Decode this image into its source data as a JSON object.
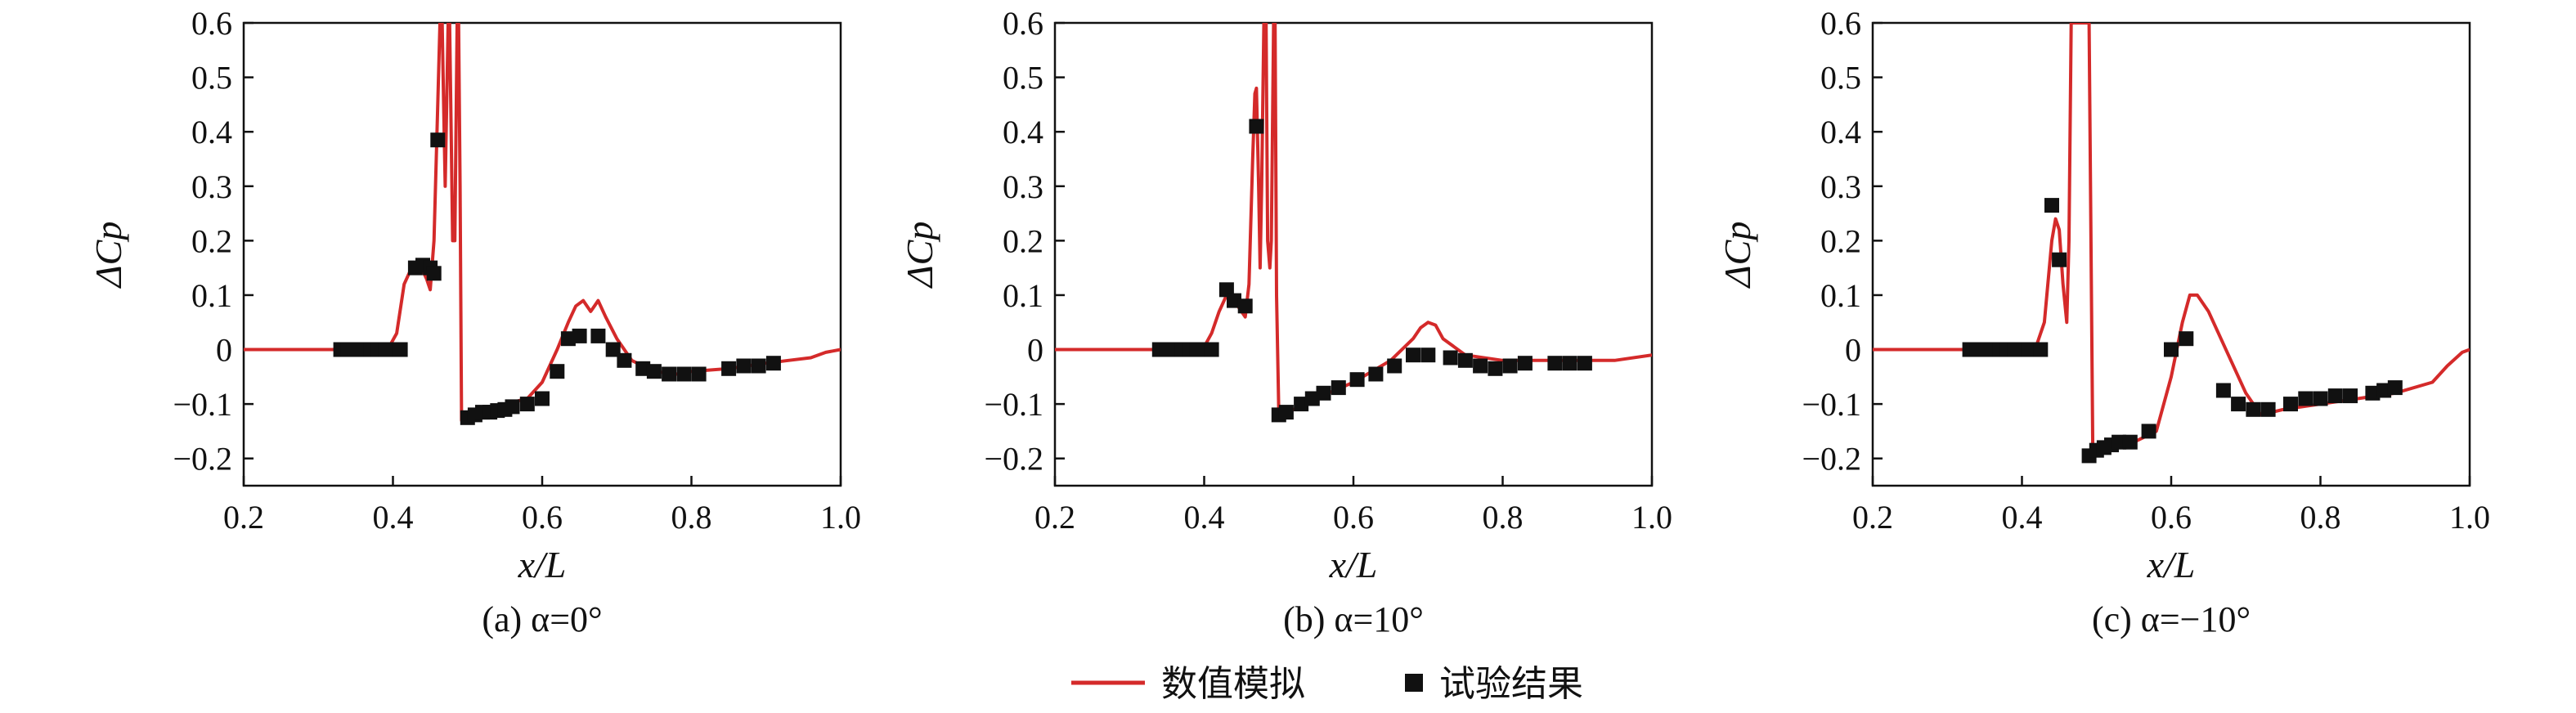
{
  "chart_data": [
    {
      "type": "line",
      "caption": "(a) α=0°",
      "xlabel": "x/L",
      "ylabel": "ΔCp",
      "xlim": [
        0.2,
        1.0
      ],
      "ylim": [
        -0.25,
        0.6
      ],
      "xticks": [
        0.2,
        0.4,
        0.6,
        0.8,
        1.0
      ],
      "xtick_labels": [
        "0.2",
        "0.4",
        "0.6",
        "0.8",
        "1.0"
      ],
      "yticks": [
        -0.2,
        -0.1,
        0,
        0.1,
        0.2,
        0.3,
        0.4,
        0.5,
        0.6
      ],
      "ytick_labels": [
        "−0.2",
        "−0.1",
        "0",
        "0.1",
        "0.2",
        "0.3",
        "0.4",
        "0.5",
        "0.6"
      ],
      "series": [
        {
          "name": "数值模拟",
          "kind": "line",
          "color": "#d42a2a",
          "x": [
            0.2,
            0.3,
            0.38,
            0.395,
            0.405,
            0.415,
            0.425,
            0.435,
            0.445,
            0.45,
            0.455,
            0.46,
            0.463,
            0.466,
            0.468,
            0.47,
            0.472,
            0.474,
            0.476,
            0.478,
            0.48,
            0.483,
            0.486,
            0.488,
            0.49,
            0.492,
            0.5,
            0.52,
            0.55,
            0.58,
            0.6,
            0.62,
            0.635,
            0.645,
            0.655,
            0.665,
            0.67,
            0.675,
            0.685,
            0.7,
            0.72,
            0.75,
            0.78,
            0.8,
            0.85,
            0.9,
            0.93,
            0.96,
            0.98,
            1.0
          ],
          "y": [
            0,
            0,
            0,
            0.005,
            0.03,
            0.12,
            0.15,
            0.16,
            0.13,
            0.11,
            0.2,
            0.45,
            0.6,
            0.6,
            0.45,
            0.3,
            0.45,
            0.6,
            0.6,
            0.4,
            0.2,
            0.2,
            0.6,
            0.6,
            0.3,
            -0.13,
            -0.12,
            -0.11,
            -0.1,
            -0.09,
            -0.06,
            0,
            0.05,
            0.08,
            0.09,
            0.07,
            0.08,
            0.09,
            0.06,
            0.02,
            -0.02,
            -0.04,
            -0.045,
            -0.04,
            -0.035,
            -0.025,
            -0.02,
            -0.015,
            -0.005,
            0
          ]
        },
        {
          "name": "试验结果",
          "kind": "scatter",
          "color": "#111111",
          "x": [
            0.33,
            0.34,
            0.35,
            0.36,
            0.37,
            0.38,
            0.39,
            0.4,
            0.41,
            0.43,
            0.44,
            0.45,
            0.455,
            0.46,
            0.5,
            0.51,
            0.52,
            0.53,
            0.54,
            0.55,
            0.56,
            0.58,
            0.6,
            0.62,
            0.635,
            0.65,
            0.675,
            0.695,
            0.71,
            0.735,
            0.75,
            0.77,
            0.79,
            0.81,
            0.85,
            0.87,
            0.89,
            0.91
          ],
          "y": [
            0,
            0,
            0,
            0,
            0,
            0,
            0,
            0,
            0,
            0.15,
            0.155,
            0.15,
            0.14,
            0.385,
            -0.125,
            -0.12,
            -0.115,
            -0.115,
            -0.112,
            -0.11,
            -0.105,
            -0.1,
            -0.09,
            -0.04,
            0.02,
            0.025,
            0.025,
            0,
            -0.02,
            -0.035,
            -0.04,
            -0.045,
            -0.045,
            -0.045,
            -0.035,
            -0.03,
            -0.03,
            -0.025
          ]
        }
      ]
    },
    {
      "type": "line",
      "caption": "(b) α=10°",
      "xlabel": "x/L",
      "ylabel": "ΔCp",
      "xlim": [
        0.2,
        1.0
      ],
      "ylim": [
        -0.25,
        0.6
      ],
      "xticks": [
        0.2,
        0.4,
        0.6,
        0.8,
        1.0
      ],
      "xtick_labels": [
        "0.2",
        "0.4",
        "0.6",
        "0.8",
        "1.0"
      ],
      "yticks": [
        -0.2,
        -0.1,
        0,
        0.1,
        0.2,
        0.3,
        0.4,
        0.5,
        0.6
      ],
      "ytick_labels": [
        "−0.2",
        "−0.1",
        "0",
        "0.1",
        "0.2",
        "0.3",
        "0.4",
        "0.5",
        "0.6"
      ],
      "series": [
        {
          "name": "数值模拟",
          "kind": "line",
          "color": "#d42a2a",
          "x": [
            0.2,
            0.3,
            0.38,
            0.4,
            0.41,
            0.42,
            0.43,
            0.44,
            0.45,
            0.455,
            0.46,
            0.465,
            0.468,
            0.47,
            0.473,
            0.475,
            0.477,
            0.48,
            0.483,
            0.485,
            0.488,
            0.49,
            0.493,
            0.495,
            0.497,
            0.5,
            0.52,
            0.55,
            0.6,
            0.65,
            0.68,
            0.69,
            0.7,
            0.71,
            0.72,
            0.75,
            0.8,
            0.85,
            0.9,
            0.95,
            1.0
          ],
          "y": [
            0,
            0,
            0,
            0.005,
            0.03,
            0.07,
            0.1,
            0.09,
            0.07,
            0.06,
            0.12,
            0.35,
            0.47,
            0.48,
            0.3,
            0.15,
            0.3,
            0.6,
            0.6,
            0.2,
            0.15,
            0.2,
            0.6,
            0.6,
            0.1,
            -0.12,
            -0.11,
            -0.09,
            -0.06,
            -0.02,
            0.02,
            0.04,
            0.05,
            0.045,
            0.02,
            -0.01,
            -0.02,
            -0.02,
            -0.02,
            -0.02,
            -0.01
          ]
        },
        {
          "name": "试验结果",
          "kind": "scatter",
          "color": "#111111",
          "x": [
            0.34,
            0.35,
            0.36,
            0.37,
            0.38,
            0.39,
            0.4,
            0.41,
            0.43,
            0.44,
            0.455,
            0.47,
            0.5,
            0.51,
            0.53,
            0.545,
            0.56,
            0.58,
            0.605,
            0.63,
            0.655,
            0.68,
            0.7,
            0.73,
            0.75,
            0.77,
            0.79,
            0.81,
            0.83,
            0.87,
            0.89,
            0.91
          ],
          "y": [
            0,
            0,
            0,
            0,
            0,
            0,
            0,
            0,
            0.11,
            0.09,
            0.08,
            0.41,
            -0.12,
            -0.115,
            -0.1,
            -0.09,
            -0.08,
            -0.07,
            -0.055,
            -0.045,
            -0.03,
            -0.01,
            -0.01,
            -0.015,
            -0.02,
            -0.03,
            -0.035,
            -0.03,
            -0.025,
            -0.025,
            -0.025,
            -0.025
          ]
        }
      ]
    },
    {
      "type": "line",
      "caption": "(c) α=−10°",
      "xlabel": "x/L",
      "ylabel": "ΔCp",
      "xlim": [
        0.2,
        1.0
      ],
      "ylim": [
        -0.25,
        0.6
      ],
      "xticks": [
        0.2,
        0.4,
        0.6,
        0.8,
        1.0
      ],
      "xtick_labels": [
        "0.2",
        "0.4",
        "0.6",
        "0.8",
        "1.0"
      ],
      "yticks": [
        -0.2,
        -0.1,
        0,
        0.1,
        0.2,
        0.3,
        0.4,
        0.5,
        0.6
      ],
      "ytick_labels": [
        "−0.2",
        "−0.1",
        "0",
        "0.1",
        "0.2",
        "0.3",
        "0.4",
        "0.5",
        "0.6"
      ],
      "series": [
        {
          "name": "数值模拟",
          "kind": "line",
          "color": "#d42a2a",
          "x": [
            0.2,
            0.3,
            0.4,
            0.42,
            0.43,
            0.44,
            0.445,
            0.45,
            0.455,
            0.46,
            0.463,
            0.466,
            0.47,
            0.475,
            0.48,
            0.483,
            0.486,
            0.49,
            0.495,
            0.5,
            0.52,
            0.55,
            0.58,
            0.6,
            0.615,
            0.625,
            0.635,
            0.65,
            0.67,
            0.7,
            0.72,
            0.75,
            0.8,
            0.85,
            0.9,
            0.95,
            0.97,
            0.99,
            1.0
          ],
          "y": [
            0,
            0,
            0,
            0.01,
            0.05,
            0.2,
            0.24,
            0.22,
            0.12,
            0.05,
            0.2,
            0.6,
            0.6,
            0.6,
            0.6,
            0.6,
            0.6,
            0.6,
            -0.2,
            -0.19,
            -0.18,
            -0.17,
            -0.15,
            -0.05,
            0.05,
            0.1,
            0.1,
            0.07,
            0.01,
            -0.08,
            -0.12,
            -0.11,
            -0.1,
            -0.09,
            -0.08,
            -0.06,
            -0.03,
            -0.005,
            0
          ]
        },
        {
          "name": "试验结果",
          "kind": "scatter",
          "color": "#111111",
          "x": [
            0.33,
            0.34,
            0.35,
            0.36,
            0.37,
            0.38,
            0.39,
            0.4,
            0.41,
            0.425,
            0.44,
            0.45,
            0.49,
            0.5,
            0.51,
            0.52,
            0.53,
            0.545,
            0.57,
            0.6,
            0.62,
            0.67,
            0.69,
            0.71,
            0.73,
            0.76,
            0.78,
            0.8,
            0.82,
            0.84,
            0.87,
            0.885,
            0.9
          ],
          "y": [
            0,
            0,
            0,
            0,
            0,
            0,
            0,
            0,
            0,
            0,
            0.265,
            0.165,
            -0.195,
            -0.185,
            -0.18,
            -0.175,
            -0.17,
            -0.17,
            -0.15,
            0,
            0.02,
            -0.075,
            -0.1,
            -0.11,
            -0.11,
            -0.1,
            -0.09,
            -0.09,
            -0.085,
            -0.085,
            -0.08,
            -0.075,
            -0.07
          ]
        }
      ]
    }
  ],
  "legend": {
    "items": [
      {
        "label": "数值模拟",
        "kind": "line",
        "color": "#d42a2a"
      },
      {
        "label": "试验结果",
        "kind": "marker",
        "color": "#111111"
      }
    ],
    "placement": "bottom-center"
  }
}
